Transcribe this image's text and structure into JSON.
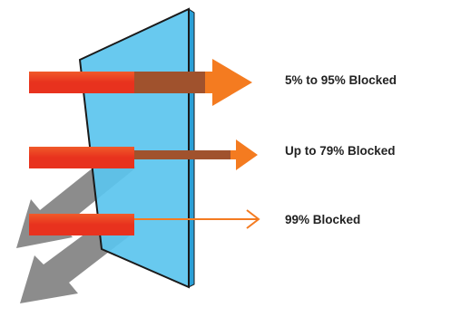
{
  "diagram": {
    "labels": {
      "row1": "5% to 95% Blocked",
      "row2": "Up to 79% Blocked",
      "row3": "99% Blocked"
    },
    "colors": {
      "glass_fill": "#5bc4ee",
      "glass_edge": "#1a1a1a",
      "glass_side": "#2a9fd6",
      "incoming_bar": "#e8321e",
      "incoming_bar_light": "#f05a2a",
      "transmitted_brown": "#a0522d",
      "arrow_orange": "#f47b20",
      "reflected_gray": "#8c8c8c"
    },
    "icons": [
      "arrow-right-icon",
      "arrow-down-left-icon"
    ]
  }
}
